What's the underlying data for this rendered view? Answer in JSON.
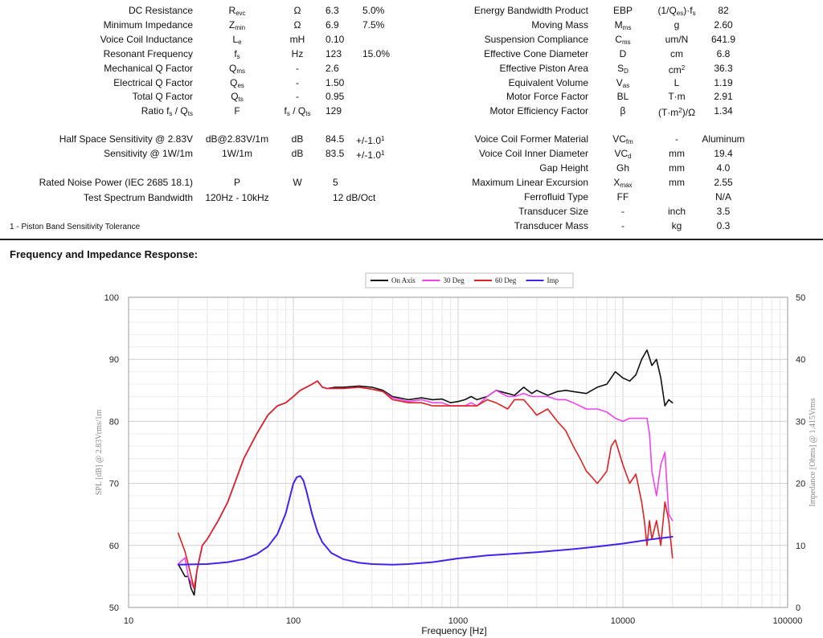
{
  "spec_left": [
    {
      "label": "DC Resistance",
      "sym": "R",
      "sub": "evc",
      "unit": "Ω",
      "value": "6.3",
      "tol": "5.0%"
    },
    {
      "label": "Minimum Impedance",
      "sym": "Z",
      "sub": "min",
      "unit": "Ω",
      "value": "6.9",
      "tol": "7.5%"
    },
    {
      "label": "Voice Coil Inductance",
      "sym": "L",
      "sub": "e",
      "unit": "mH",
      "value": "0.10",
      "tol": ""
    },
    {
      "label": "Resonant Frequency",
      "sym": "f",
      "sub": "s",
      "unit": "Hz",
      "value": "123",
      "tol": "15.0%"
    },
    {
      "label": "Mechanical Q Factor",
      "sym": "Q",
      "sub": "ms",
      "unit": "-",
      "value": "2.6",
      "tol": ""
    },
    {
      "label": "Electrical Q Factor",
      "sym": "Q",
      "sub": "es",
      "unit": "-",
      "value": "1.50",
      "tol": ""
    },
    {
      "label": "Total Q Factor",
      "sym": "Q",
      "sub": "ts",
      "unit": "-",
      "value": "0.95",
      "tol": ""
    },
    {
      "label": "Ratio f",
      "label_sub": "s",
      "label_tail": " / Q",
      "label_sub2": "ts",
      "sym": "F",
      "sub": "",
      "unit": "f",
      "unit_sub": "s",
      "unit_tail": " / Q",
      "unit_sub2": "ts",
      "value": "129",
      "tol": ""
    }
  ],
  "spec_left2": [
    {
      "label": "Half Space Sensitivity @ 2.83V",
      "sym": "dB@2.83V/1m",
      "unit": "dB",
      "value": "84.5",
      "tol": "+/-1.0",
      "sup": "1"
    },
    {
      "label": "Sensitivity @ 1W/1m",
      "sym": "1W/1m",
      "unit": "dB",
      "value": "83.5",
      "tol": "+/-1.0",
      "sup": "1"
    }
  ],
  "spec_left3": [
    {
      "label": "Rated Noise Power (IEC 2685 18.1)",
      "sym": "P",
      "unit": "W",
      "value": "5"
    },
    {
      "label": "Test Spectrum Bandwidth",
      "sym": "120Hz - 10kHz",
      "unit": "",
      "value": "12 dB/Oct"
    }
  ],
  "spec_right": [
    {
      "label": "Energy Bandwidth Product",
      "sym": "EBP",
      "sub": "",
      "unit": "(1/Q",
      "unit_sub": "es",
      "unit_tail": ")·f",
      "unit_sub2": "s",
      "value": "82"
    },
    {
      "label": "Moving Mass",
      "sym": "M",
      "sub": "ms",
      "unit": "g",
      "value": "2.60"
    },
    {
      "label": "Suspension Compliance",
      "sym": "C",
      "sub": "ms",
      "unit": "um/N",
      "value": "641.9"
    },
    {
      "label": "Effective Cone Diameter",
      "sym": "D",
      "sub": "",
      "unit": "cm",
      "value": "6.8"
    },
    {
      "label": "Effective Piston Area",
      "sym": "S",
      "sub": "D",
      "unit": "cm",
      "unit_sup": "2",
      "value": "36.3"
    },
    {
      "label": "Equivalent Volume",
      "sym": "V",
      "sub": "as",
      "unit": "L",
      "value": "1.19"
    },
    {
      "label": "Motor Force Factor",
      "sym": "BL",
      "sub": "",
      "unit": "T·m",
      "value": "2.91"
    },
    {
      "label": "Motor Efficiency Factor",
      "sym": "β",
      "sub": "",
      "unit": "(T·m",
      "unit_sup": "2",
      "unit_tail": ")/Ω",
      "value": "1.34"
    }
  ],
  "spec_right2": [
    {
      "label": "Voice Coil Former Material",
      "sym": "VC",
      "sub": "fm",
      "unit": "-",
      "value": "Aluminum"
    },
    {
      "label": "Voice Coil Inner Diameter",
      "sym": "VC",
      "sub": "d",
      "unit": "mm",
      "value": "19.4"
    },
    {
      "label": "Gap Height",
      "sym": "Gh",
      "sub": "",
      "unit": "mm",
      "value": "4.0"
    },
    {
      "label": "Maximum Linear Excursion",
      "sym": "X",
      "sub": "max",
      "unit": "mm",
      "value": "2.55"
    },
    {
      "label": "Ferrofluid Type",
      "sym": "FF",
      "sub": "",
      "unit": "",
      "value": "N/A"
    },
    {
      "label": "Transducer Size",
      "sym": "-",
      "sub": "",
      "unit": "inch",
      "value": "3.5"
    },
    {
      "label": "Transducer Mass",
      "sym": "-",
      "sub": "",
      "unit": "kg",
      "value": "0.3"
    }
  ],
  "footnote": "1 - Piston Band Sensitivity Tolerance",
  "section_title": "Frequency and Impedance Response:",
  "chart_data": {
    "type": "line",
    "x_scale": "log",
    "xlim": [
      10,
      100000
    ],
    "ylim": [
      50,
      100
    ],
    "y2lim": [
      0,
      50
    ],
    "xlabel": "Frequency [Hz]",
    "ylabel": "SPL [dB] @ 2.83Vrms/1m",
    "y2label": "Impedance [Ohms] @ 1.415Vrms",
    "x_ticks": [
      "10",
      "100",
      "1000",
      "10000",
      "100000"
    ],
    "y_ticks": [
      "50",
      "60",
      "70",
      "80",
      "90",
      "100"
    ],
    "y2_ticks": [
      "0",
      "10",
      "20",
      "30",
      "40",
      "50"
    ],
    "grid": true,
    "legend_position": "top-center",
    "series": [
      {
        "name": "On Axis",
        "axis": "left",
        "color": "#111111",
        "x": [
          20,
          22,
          23,
          24,
          25,
          26,
          28,
          30,
          35,
          40,
          50,
          60,
          70,
          80,
          90,
          100,
          110,
          120,
          130,
          140,
          150,
          160,
          180,
          200,
          250,
          300,
          350,
          400,
          500,
          600,
          700,
          800,
          900,
          1000,
          1100,
          1200,
          1300,
          1500,
          1700,
          2000,
          2200,
          2500,
          2800,
          3000,
          3500,
          4000,
          4500,
          5000,
          6000,
          7000,
          8000,
          9000,
          10000,
          11000,
          12000,
          13000,
          14000,
          15000,
          16000,
          17000,
          18000,
          19000,
          20000
        ],
        "y": [
          57,
          55,
          55,
          53,
          52,
          56,
          60,
          61,
          64,
          67,
          74,
          78,
          81,
          82.5,
          83,
          84,
          85,
          85.5,
          86,
          86.5,
          85.5,
          85.3,
          85.5,
          85.5,
          85.7,
          85.5,
          85,
          84,
          83.5,
          83.8,
          83.5,
          83.6,
          83,
          83.2,
          83.5,
          84,
          83.5,
          84,
          85,
          84.5,
          84.2,
          85.5,
          84.5,
          85,
          84.2,
          84.8,
          85,
          84.8,
          84.5,
          85.5,
          86,
          88,
          87,
          86.5,
          87.5,
          90,
          91.5,
          89,
          90,
          87,
          82.5,
          83.5,
          83
        ]
      },
      {
        "name": "30 Deg",
        "axis": "left",
        "color": "#ee44ee",
        "x": [
          20,
          22,
          23,
          24,
          25,
          26,
          28,
          30,
          35,
          40,
          50,
          60,
          70,
          80,
          90,
          100,
          110,
          120,
          130,
          140,
          150,
          160,
          180,
          200,
          250,
          300,
          350,
          400,
          500,
          600,
          700,
          800,
          900,
          1000,
          1100,
          1200,
          1300,
          1500,
          1700,
          2000,
          2200,
          2500,
          2800,
          3000,
          3500,
          4000,
          4500,
          5000,
          6000,
          7000,
          8000,
          9000,
          10000,
          11000,
          12000,
          13000,
          14000,
          14500,
          15000,
          16000,
          17000,
          18000,
          19000,
          20000
        ],
        "y": [
          57,
          58,
          55,
          54,
          53,
          56,
          60,
          61,
          64,
          67,
          74,
          78,
          81,
          82.5,
          83,
          84,
          85,
          85.5,
          86,
          86.5,
          85.5,
          85.3,
          85.3,
          85.3,
          85.5,
          85.2,
          84.8,
          83.8,
          83.2,
          83.5,
          83,
          83,
          82.5,
          82.5,
          82.5,
          83,
          82.5,
          84,
          85,
          84,
          84,
          84.5,
          84,
          84,
          84,
          83.5,
          83.5,
          83,
          82,
          82,
          81.5,
          80.5,
          80,
          80.5,
          80.5,
          80.5,
          80.5,
          78,
          72,
          68,
          73,
          75,
          65,
          64
        ]
      },
      {
        "name": "60 Deg",
        "axis": "left",
        "color": "#dd2222",
        "x": [
          20,
          22,
          23,
          24,
          25,
          26,
          28,
          30,
          35,
          40,
          50,
          60,
          70,
          80,
          90,
          100,
          110,
          120,
          130,
          140,
          150,
          160,
          180,
          200,
          250,
          300,
          350,
          400,
          500,
          600,
          700,
          800,
          900,
          1000,
          1100,
          1200,
          1300,
          1500,
          1700,
          2000,
          2200,
          2500,
          2800,
          3000,
          3500,
          4000,
          4500,
          5000,
          5500,
          6000,
          6500,
          7000,
          7500,
          8000,
          8500,
          9000,
          10000,
          11000,
          12000,
          13000,
          13500,
          14000,
          14500,
          15000,
          16000,
          17000,
          18000,
          19000,
          20000
        ],
        "y": [
          62,
          59,
          57,
          55,
          53,
          56,
          60,
          61,
          64,
          67,
          74,
          78,
          81,
          82.5,
          83,
          84,
          85,
          85.5,
          86,
          86.5,
          85.5,
          85.3,
          85.3,
          85.3,
          85.5,
          85.2,
          84.8,
          83.5,
          83,
          83,
          82.5,
          82.5,
          82.5,
          82.5,
          82.5,
          82.5,
          82.5,
          83.5,
          83,
          82,
          83.5,
          83.5,
          82,
          81,
          82,
          80,
          78.5,
          76,
          74,
          72,
          71,
          70,
          71,
          72,
          76,
          77,
          73,
          70,
          71.5,
          67,
          64,
          60,
          64,
          61,
          64,
          60,
          67,
          64,
          58
        ]
      },
      {
        "name": "Imp",
        "axis": "right",
        "color": "#4422ee",
        "x": [
          20,
          30,
          40,
          50,
          60,
          70,
          80,
          90,
          100,
          105,
          110,
          115,
          120,
          130,
          140,
          150,
          170,
          200,
          250,
          300,
          400,
          500,
          700,
          1000,
          1500,
          2000,
          3000,
          5000,
          7000,
          10000,
          15000,
          20000
        ],
        "y": [
          6.9,
          7,
          7.3,
          7.8,
          8.6,
          9.8,
          11.8,
          15.2,
          20,
          21,
          21.2,
          20.5,
          18.8,
          15,
          12.2,
          10.5,
          8.8,
          7.8,
          7.2,
          7,
          6.9,
          7,
          7.3,
          7.9,
          8.4,
          8.6,
          8.9,
          9.4,
          9.8,
          10.3,
          11,
          11.4
        ]
      }
    ]
  }
}
